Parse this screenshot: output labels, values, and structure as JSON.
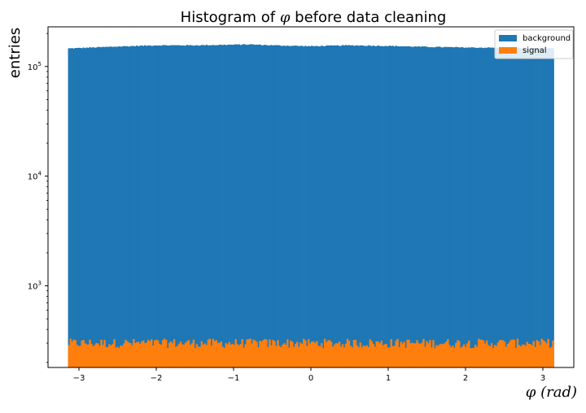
{
  "chart_data": {
    "type": "bar",
    "title_prefix": "Histogram of ",
    "title_symbol": "φ",
    "title_suffix": " before data cleaning",
    "xlabel_symbol": "φ",
    "xlabel_unit": "(rad)",
    "ylabel": "entries",
    "xlim": [
      -3.4,
      3.4
    ],
    "ylim": [
      180,
      230000
    ],
    "y_scale": "log",
    "x_ticks": [
      -3,
      -2,
      -1,
      0,
      1,
      2,
      3
    ],
    "x_tick_labels": [
      "−3",
      "−2",
      "−1",
      "0",
      "1",
      "2",
      "3"
    ],
    "y_ticks": [
      1000,
      10000,
      100000
    ],
    "y_tick_base": "10",
    "y_tick_exponents": [
      "3",
      "4",
      "5"
    ],
    "bins": 300,
    "x_range": [
      -3.14159,
      3.14159
    ],
    "legend_placement": "top-right",
    "grid": false,
    "series": [
      {
        "name": "background",
        "color": "#1f77b4",
        "profile": {
          "x": [
            -3.14,
            -2.5,
            -2.0,
            -1.5,
            -1.0,
            -0.8,
            -0.5,
            0.0,
            0.5,
            1.0,
            1.5,
            2.0,
            2.5,
            3.14
          ],
          "y": [
            146000,
            152000,
            156000,
            156000,
            158000,
            159000,
            156000,
            153000,
            156000,
            154000,
            151000,
            149000,
            148000,
            146000
          ]
        }
      },
      {
        "name": "signal",
        "color": "#ff7f0e",
        "mean": 300,
        "fluctuation": 30
      }
    ]
  }
}
